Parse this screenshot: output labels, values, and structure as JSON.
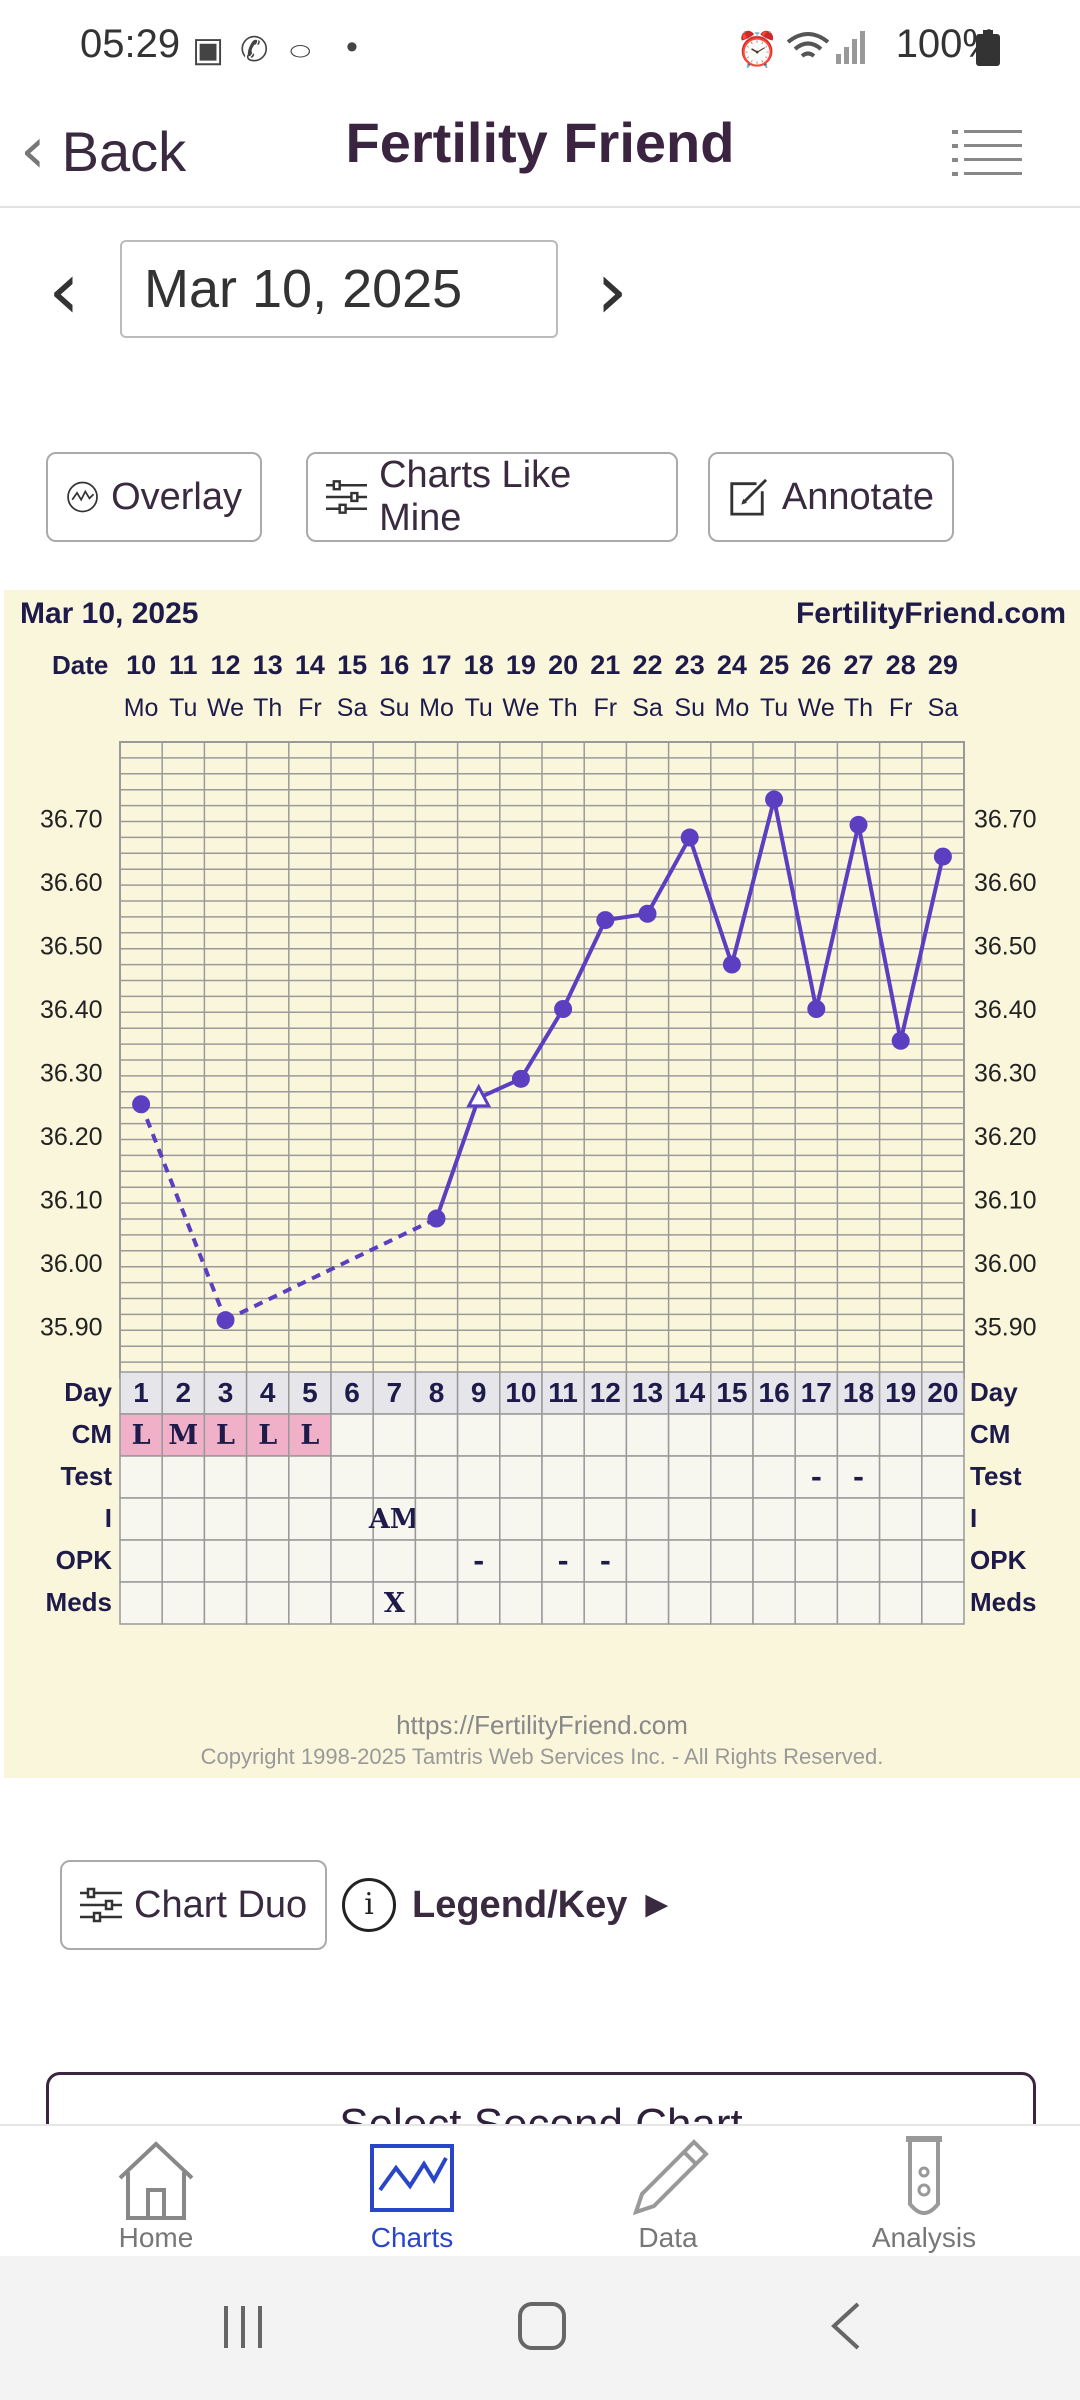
{
  "status_bar": {
    "time": "05:29",
    "battery": "100%"
  },
  "header": {
    "back_label": "Back",
    "title": "Fertility Friend"
  },
  "date_nav": {
    "date": "Mar 10, 2025"
  },
  "toolbar": {
    "overlay": "Overlay",
    "charts_like_mine": "Charts Like Mine",
    "annotate": "Annotate"
  },
  "chart": {
    "date_label": "Mar 10, 2025",
    "brand": "FertilityFriend.com",
    "date_header": "Date",
    "footer_url": "https://FertilityFriend.com",
    "footer_copyright": "Copyright 1998-2025 Tamtris Web Services Inc. - All Rights Reserved.",
    "row_labels": [
      "Day",
      "CM",
      "Test",
      "I",
      "OPK",
      "Meds"
    ]
  },
  "chart_data": {
    "type": "line",
    "dates": [
      "10",
      "11",
      "12",
      "13",
      "14",
      "15",
      "16",
      "17",
      "18",
      "19",
      "20",
      "21",
      "22",
      "23",
      "24",
      "25",
      "26",
      "27",
      "28",
      "29"
    ],
    "weekdays": [
      "Mo",
      "Tu",
      "We",
      "Th",
      "Fr",
      "Sa",
      "Su",
      "Mo",
      "Tu",
      "We",
      "Th",
      "Fr",
      "Sa",
      "Su",
      "Mo",
      "Tu",
      "We",
      "Th",
      "Fr",
      "Sa"
    ],
    "cycle_days": [
      1,
      2,
      3,
      4,
      5,
      6,
      7,
      8,
      9,
      10,
      11,
      12,
      13,
      14,
      15,
      16,
      17,
      18,
      19,
      20
    ],
    "y_ticks": [
      "36.70",
      "36.60",
      "36.50",
      "36.40",
      "36.30",
      "36.20",
      "36.10",
      "36.00",
      "35.90"
    ],
    "ylim": [
      35.8,
      36.8
    ],
    "temperatures": [
      36.25,
      null,
      35.91,
      null,
      null,
      null,
      null,
      36.07,
      36.26,
      36.29,
      36.4,
      36.54,
      36.55,
      36.67,
      36.47,
      36.73,
      36.4,
      36.69,
      36.35,
      36.64
    ],
    "open_marker_days": [
      9
    ],
    "dashed_until_day": 8,
    "line_color": "#5a3fc0",
    "cm": [
      "L",
      "M",
      "L",
      "L",
      "L",
      "",
      "",
      "",
      "",
      "",
      "",
      "",
      "",
      "",
      "",
      "",
      "",
      "",
      "",
      ""
    ],
    "cm_color": "#f0b0c8",
    "test": [
      "",
      "",
      "",
      "",
      "",
      "",
      "",
      "",
      "",
      "",
      "",
      "",
      "",
      "",
      "",
      "",
      "-",
      "-",
      "",
      ""
    ],
    "intercourse": [
      "",
      "",
      "",
      "",
      "",
      "",
      "AM",
      "",
      "",
      "",
      "",
      "",
      "",
      "",
      "",
      "",
      "",
      "",
      "",
      ""
    ],
    "opk": [
      "",
      "",
      "",
      "",
      "",
      "",
      "",
      "",
      "-",
      "",
      "-",
      "-",
      "",
      "",
      "",
      "",
      "",
      "",
      "",
      ""
    ],
    "meds": [
      "",
      "",
      "",
      "",
      "",
      "",
      "X",
      "",
      "",
      "",
      "",
      "",
      "",
      "",
      "",
      "",
      "",
      "",
      "",
      ""
    ]
  },
  "duo": {
    "chart_duo": "Chart Duo",
    "legend": "Legend/Key ►"
  },
  "select_second": "Select Second Chart",
  "bottom_nav": {
    "home": "Home",
    "charts": "Charts",
    "data": "Data",
    "analysis": "Analysis"
  },
  "colors": {
    "accent": "#2a46c8",
    "nav_inactive": "#888888"
  }
}
